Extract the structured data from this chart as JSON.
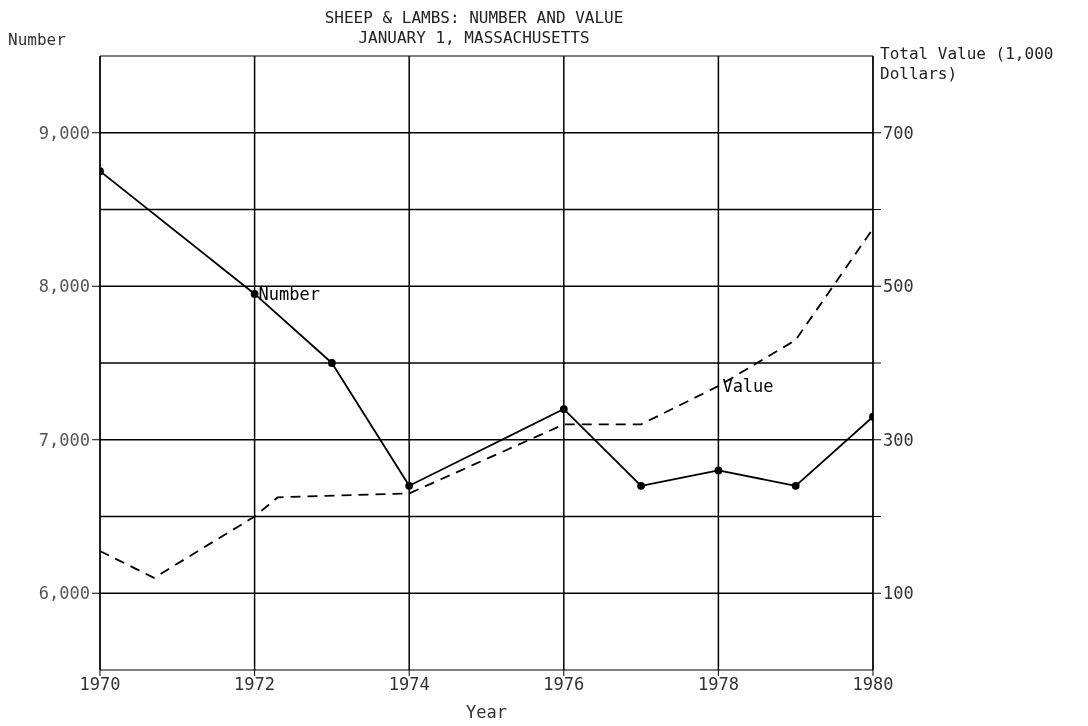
{
  "chart_data": {
    "type": "line",
    "title": "SHEEP & LAMBS:  NUMBER AND VALUE",
    "subtitle": "JANUARY 1, MASSACHUSETTS",
    "xlabel": "Year",
    "ylabel": "Number",
    "y2label": "Total Value (1,000 Dollars)",
    "series": [
      {
        "name": "Number",
        "color": "#000000",
        "line_style": "solid",
        "marker": "circle",
        "x": [
          1970,
          1972,
          1973,
          1974,
          1976,
          1977,
          1978,
          1979,
          1980
        ],
        "values": [
          8750,
          7950,
          7500,
          6700,
          7200,
          6700,
          6800,
          6700,
          7150
        ]
      },
      {
        "name": "Value",
        "color": "#000000",
        "line_style": "dashed",
        "marker": "none",
        "axis": "y2",
        "x": [
          1970,
          1970.7,
          1972,
          1972.3,
          1974,
          1976,
          1977,
          1978,
          1979,
          1980
        ],
        "values": [
          155,
          120,
          200,
          225,
          230,
          320,
          320,
          370,
          430,
          575
        ]
      }
    ],
    "xlim": [
      1970,
      1980
    ],
    "xticks": [
      1970,
      1972,
      1974,
      1976,
      1978,
      1980
    ],
    "ylim": [
      5500,
      9500
    ],
    "yticks": [
      {
        "value": 6000,
        "label": "6,000"
      },
      {
        "value": 7000,
        "label": "7,000"
      },
      {
        "value": 8000,
        "label": "8,000"
      },
      {
        "value": 9000,
        "label": "9,000"
      }
    ],
    "y2lim": [
      0,
      800
    ],
    "y2ticks": [
      100,
      {
        "value": 200,
        "label": null
      },
      300,
      {
        "value": 400,
        "label": null
      },
      500,
      {
        "value": 600,
        "label": null
      },
      700
    ],
    "grid": true,
    "legend": false
  }
}
